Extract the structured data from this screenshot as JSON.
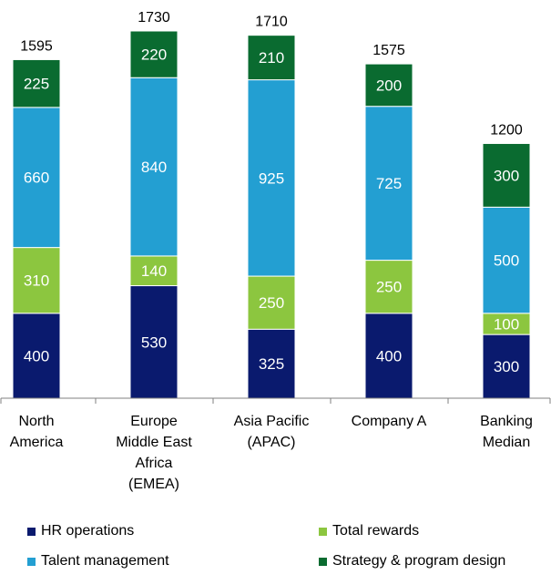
{
  "chart_data": {
    "type": "bar",
    "stacked": true,
    "categories": [
      [
        "North",
        "America"
      ],
      [
        "Europe",
        "Middle East",
        "Africa",
        "(EMEA)"
      ],
      [
        "Asia Pacific",
        "(APAC)"
      ],
      [
        "Company A"
      ],
      [
        "Banking",
        "Median"
      ]
    ],
    "series": [
      {
        "name": "HR operations",
        "color": "#0a1a6e",
        "values": [
          400,
          530,
          325,
          400,
          300
        ]
      },
      {
        "name": "Total rewards",
        "color": "#8cc63f",
        "values": [
          310,
          140,
          250,
          250,
          100
        ]
      },
      {
        "name": "Talent management",
        "color": "#239fd2",
        "values": [
          660,
          840,
          925,
          725,
          500
        ]
      },
      {
        "name": "Strategy & program design",
        "color": "#0a6b30",
        "values": [
          225,
          220,
          210,
          200,
          300
        ]
      }
    ],
    "totals": [
      1595,
      1730,
      1710,
      1575,
      1200
    ],
    "ylim": [
      0,
      1730
    ],
    "title": "",
    "xlabel": "",
    "ylabel": "",
    "grid": false,
    "legend_position": "bottom"
  },
  "legend": [
    {
      "label": "HR operations",
      "color": "#0a1a6e"
    },
    {
      "label": "Total rewards",
      "color": "#8cc63f"
    },
    {
      "label": "Talent management",
      "color": "#239fd2"
    },
    {
      "label": "Strategy & program design",
      "color": "#0a6b30"
    }
  ]
}
